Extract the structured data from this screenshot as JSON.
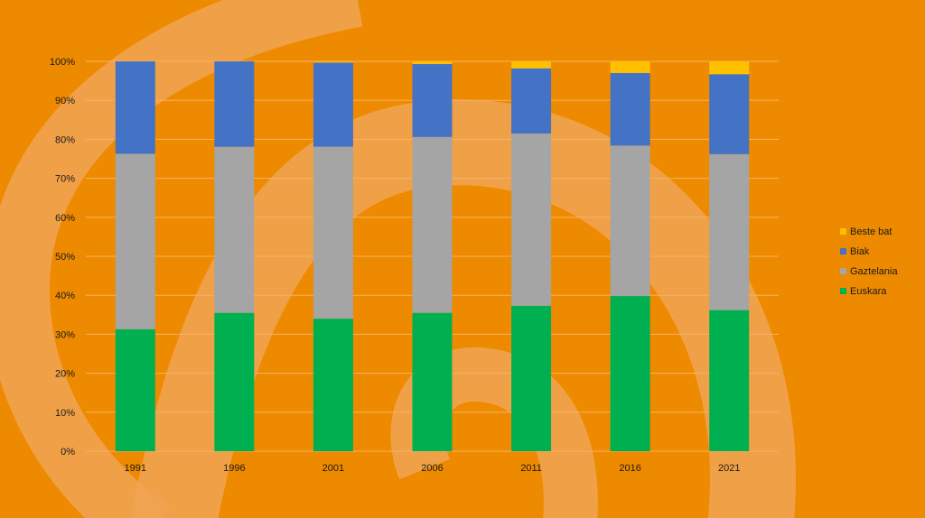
{
  "chart_data": {
    "type": "bar",
    "stacked": true,
    "percent": true,
    "categories": [
      "1991",
      "1996",
      "2001",
      "2006",
      "2011",
      "2016",
      "2021"
    ],
    "series": [
      {
        "name": "Euskara",
        "color": "#00b050",
        "values": [
          31.3,
          35.5,
          34.0,
          35.5,
          37.3,
          39.8,
          36.2
        ]
      },
      {
        "name": "Gaztelania",
        "color": "#a5a5a5",
        "values": [
          45.0,
          42.6,
          44.1,
          45.1,
          44.2,
          38.6,
          40.0
        ]
      },
      {
        "name": "Biak",
        "color": "#4472c4",
        "values": [
          23.7,
          21.9,
          21.6,
          18.7,
          16.7,
          18.6,
          20.5
        ]
      },
      {
        "name": "Beste bat",
        "color": "#ffc000",
        "values": [
          0.0,
          0.0,
          0.3,
          0.7,
          1.8,
          3.0,
          3.3
        ]
      }
    ],
    "yticks": [
      "0%",
      "10%",
      "20%",
      "30%",
      "40%",
      "50%",
      "60%",
      "70%",
      "80%",
      "90%",
      "100%"
    ],
    "ylim": [
      0,
      100
    ],
    "grid": true,
    "legend": "right",
    "background_color": "#ee8a00",
    "gridline_color": "#f4b266"
  }
}
